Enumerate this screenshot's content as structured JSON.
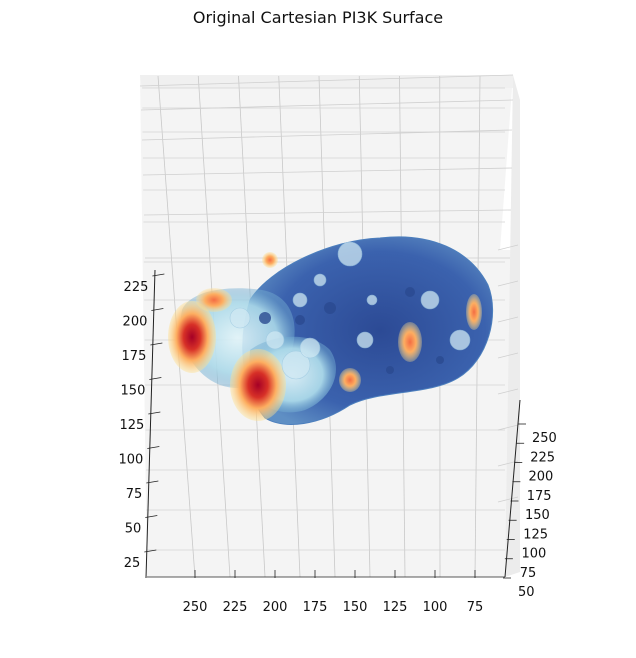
{
  "chart_data": {
    "type": "scatter",
    "projection": "3d",
    "title": "Original Cartesian PI3K Surface",
    "xlabel": "",
    "ylabel": "",
    "zlabel": "",
    "grid": true,
    "colormap": "RdYlBu",
    "x_axis": {
      "ticks": [
        250,
        225,
        200,
        175,
        150,
        125,
        100,
        75
      ],
      "range": [
        55,
        285
      ]
    },
    "y_axis": {
      "ticks": [
        50,
        75,
        100,
        125,
        150,
        175,
        200,
        225,
        250
      ],
      "range": [
        50,
        265
      ]
    },
    "z_axis": {
      "ticks": [
        25,
        50,
        75,
        100,
        125,
        150,
        175,
        200,
        225
      ],
      "range": [
        15,
        240
      ]
    },
    "surface_regions": [
      {
        "region": "main body",
        "color_level": "low"
      },
      {
        "region": "left lobe",
        "color_level": "high"
      },
      {
        "region": "lower-left lobe",
        "color_level": "high"
      },
      {
        "region": "right patch",
        "color_level": "medium"
      },
      {
        "region": "center bump",
        "color_level": "medium"
      }
    ]
  }
}
